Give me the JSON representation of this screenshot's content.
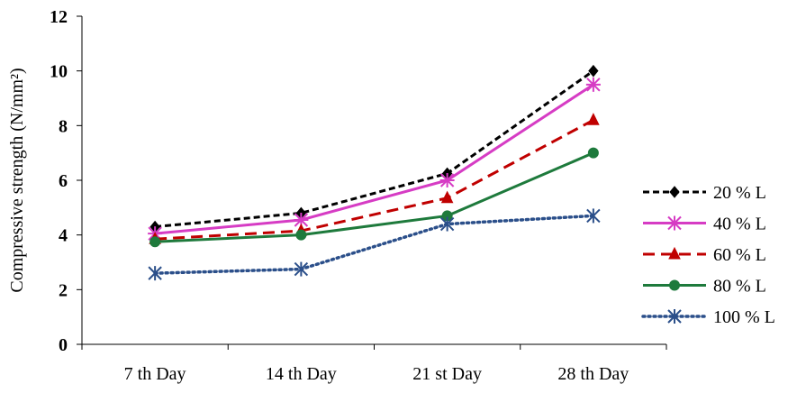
{
  "chart_data": {
    "type": "line",
    "title": "",
    "xlabel": "",
    "ylabel": "Compressive strength (N/mm²)",
    "categories": [
      "7 th Day",
      "14 th Day",
      "21 st Day",
      "28 th Day"
    ],
    "ylim": [
      0,
      12
    ],
    "yticks": [
      "0",
      "2",
      "4",
      "6",
      "8",
      "10",
      "12"
    ],
    "grid": false,
    "legend_position": "right",
    "series": [
      {
        "name": "20 % L",
        "values": [
          4.3,
          4.8,
          6.25,
          10.0
        ],
        "color": "#000000",
        "dash": "dashed",
        "marker": "diamond"
      },
      {
        "name": "40 % L",
        "values": [
          4.05,
          4.55,
          6.0,
          9.5
        ],
        "color": "#d63cc4",
        "dash": "solid",
        "marker": "star"
      },
      {
        "name": "60 % L",
        "values": [
          3.85,
          4.15,
          5.35,
          8.2
        ],
        "color": "#c00000",
        "dash": "longdash",
        "marker": "triangle"
      },
      {
        "name": "80 % L",
        "values": [
          3.75,
          4.0,
          4.7,
          7.0
        ],
        "color": "#1e7a3c",
        "dash": "solid",
        "marker": "circle"
      },
      {
        "name": "100 % L",
        "values": [
          2.6,
          2.75,
          4.4,
          4.7
        ],
        "color": "#2b4f8a",
        "dash": "dotted",
        "marker": "asterisk"
      }
    ]
  }
}
